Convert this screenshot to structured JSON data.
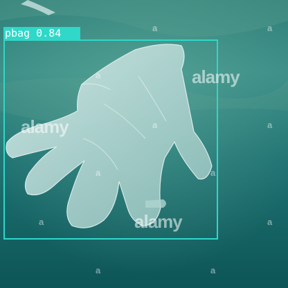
{
  "detection": {
    "label_text": "pbag 0.84",
    "class": "pbag",
    "confidence": 0.84,
    "box_color": "#2fd8c8"
  },
  "watermarks": {
    "brand": "alamy",
    "mark": "a"
  },
  "colors": {
    "water_dark": "#0d4f52",
    "water_light": "#3f9a96",
    "glove": "#b9d8d4"
  }
}
